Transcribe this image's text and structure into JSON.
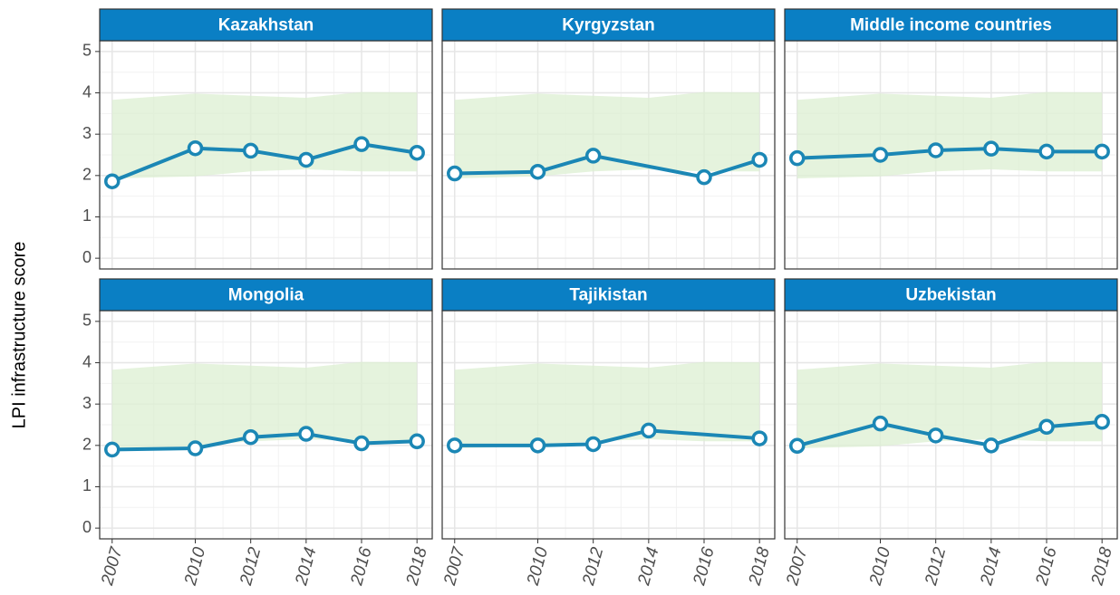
{
  "ylabel": "LPI infrastructure score",
  "chart_data": [
    {
      "type": "line",
      "title": "Kazakhstan",
      "x": [
        2007,
        2010,
        2012,
        2014,
        2016,
        2018
      ],
      "series": [
        {
          "color": "#1b87b5",
          "values": [
            1.86,
            2.66,
            2.6,
            2.38,
            2.76,
            2.55
          ]
        }
      ],
      "band": {
        "color": "#dcefd2",
        "x": [
          2007,
          2010,
          2012,
          2014,
          2016,
          2018
        ],
        "lower": [
          1.93,
          1.98,
          2.1,
          2.15,
          2.1,
          2.1
        ],
        "upper": [
          3.83,
          3.98,
          3.93,
          3.88,
          4.02,
          4.01
        ]
      },
      "xlim": [
        2006.55,
        2018.55
      ],
      "xticks": [
        2007,
        2010,
        2012,
        2014,
        2016,
        2018
      ],
      "ylim": [
        -0.26,
        5.26
      ],
      "yticks": [
        0,
        1,
        2,
        3,
        4,
        5
      ],
      "grid": true
    },
    {
      "type": "line",
      "title": "Kyrgyzstan",
      "x": [
        2007,
        2010,
        2012,
        2016,
        2018
      ],
      "series": [
        {
          "color": "#1b87b5",
          "values": [
            2.05,
            2.09,
            2.48,
            1.96,
            2.38
          ]
        }
      ],
      "band": {
        "color": "#dcefd2",
        "x": [
          2007,
          2010,
          2012,
          2014,
          2016,
          2018
        ],
        "lower": [
          1.93,
          1.98,
          2.1,
          2.15,
          2.1,
          2.1
        ],
        "upper": [
          3.83,
          3.98,
          3.93,
          3.88,
          4.02,
          4.01
        ]
      },
      "xlim": [
        2006.55,
        2018.55
      ],
      "xticks": [
        2007,
        2010,
        2012,
        2014,
        2016,
        2018
      ],
      "ylim": [
        -0.26,
        5.26
      ],
      "yticks": [
        0,
        1,
        2,
        3,
        4,
        5
      ],
      "grid": true
    },
    {
      "type": "line",
      "title": "Middle income countries",
      "x": [
        2007,
        2010,
        2012,
        2014,
        2016,
        2018
      ],
      "series": [
        {
          "color": "#1b87b5",
          "values": [
            2.42,
            2.5,
            2.61,
            2.65,
            2.58,
            2.58
          ]
        }
      ],
      "band": {
        "color": "#dcefd2",
        "x": [
          2007,
          2010,
          2012,
          2014,
          2016,
          2018
        ],
        "lower": [
          1.93,
          1.98,
          2.1,
          2.15,
          2.1,
          2.1
        ],
        "upper": [
          3.83,
          3.98,
          3.93,
          3.88,
          4.02,
          4.01
        ]
      },
      "xlim": [
        2006.55,
        2018.55
      ],
      "xticks": [
        2007,
        2010,
        2012,
        2014,
        2016,
        2018
      ],
      "ylim": [
        -0.26,
        5.26
      ],
      "yticks": [
        0,
        1,
        2,
        3,
        4,
        5
      ],
      "grid": true
    },
    {
      "type": "line",
      "title": "Mongolia",
      "x": [
        2007,
        2010,
        2012,
        2014,
        2016,
        2018
      ],
      "series": [
        {
          "color": "#1b87b5",
          "values": [
            1.9,
            1.93,
            2.2,
            2.28,
            2.05,
            2.1
          ]
        }
      ],
      "band": {
        "color": "#dcefd2",
        "x": [
          2007,
          2010,
          2012,
          2014,
          2016,
          2018
        ],
        "lower": [
          1.93,
          1.98,
          2.1,
          2.15,
          2.1,
          2.1
        ],
        "upper": [
          3.83,
          3.98,
          3.93,
          3.88,
          4.02,
          4.01
        ]
      },
      "xlim": [
        2006.55,
        2018.55
      ],
      "xticks": [
        2007,
        2010,
        2012,
        2014,
        2016,
        2018
      ],
      "ylim": [
        -0.26,
        5.26
      ],
      "yticks": [
        0,
        1,
        2,
        3,
        4,
        5
      ],
      "grid": true
    },
    {
      "type": "line",
      "title": "Tajikistan",
      "x": [
        2007,
        2010,
        2012,
        2014,
        2018
      ],
      "series": [
        {
          "color": "#1b87b5",
          "values": [
            2.0,
            2.0,
            2.03,
            2.36,
            2.17
          ]
        }
      ],
      "band": {
        "color": "#dcefd2",
        "x": [
          2007,
          2010,
          2012,
          2014,
          2016,
          2018
        ],
        "lower": [
          1.93,
          1.98,
          2.1,
          2.15,
          2.1,
          2.1
        ],
        "upper": [
          3.83,
          3.98,
          3.93,
          3.88,
          4.02,
          4.01
        ]
      },
      "xlim": [
        2006.55,
        2018.55
      ],
      "xticks": [
        2007,
        2010,
        2012,
        2014,
        2016,
        2018
      ],
      "ylim": [
        -0.26,
        5.26
      ],
      "yticks": [
        0,
        1,
        2,
        3,
        4,
        5
      ],
      "grid": true
    },
    {
      "type": "line",
      "title": "Uzbekistan",
      "x": [
        2007,
        2010,
        2012,
        2014,
        2016,
        2018
      ],
      "series": [
        {
          "color": "#1b87b5",
          "values": [
            1.99,
            2.53,
            2.24,
            2.0,
            2.45,
            2.57
          ]
        }
      ],
      "band": {
        "color": "#dcefd2",
        "x": [
          2007,
          2010,
          2012,
          2014,
          2016,
          2018
        ],
        "lower": [
          1.93,
          1.98,
          2.1,
          2.15,
          2.1,
          2.1
        ],
        "upper": [
          3.83,
          3.98,
          3.93,
          3.88,
          4.02,
          4.01
        ]
      },
      "xlim": [
        2006.55,
        2018.55
      ],
      "xticks": [
        2007,
        2010,
        2012,
        2014,
        2016,
        2018
      ],
      "ylim": [
        -0.26,
        5.26
      ],
      "yticks": [
        0,
        1,
        2,
        3,
        4,
        5
      ],
      "grid": true
    }
  ]
}
